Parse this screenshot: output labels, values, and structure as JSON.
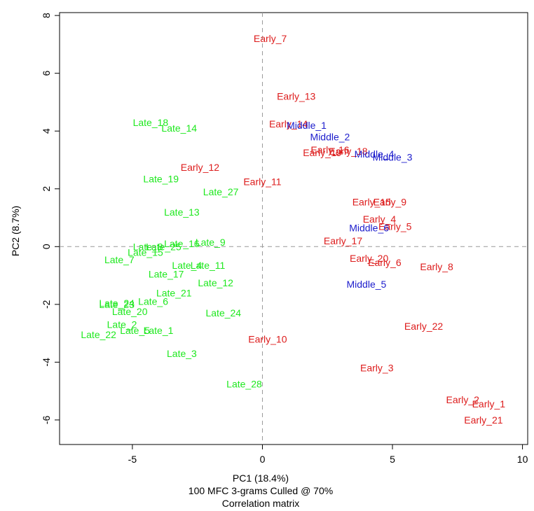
{
  "chart_data": {
    "type": "scatter",
    "title": "",
    "xlabel": "PC1 (18.4%)",
    "ylabel": "PC2 (8.7%)",
    "caption_lines": [
      "100 MFC 3-grams Culled @ 70%",
      "Correlation matrix"
    ],
    "xlim": [
      -7.8,
      10.2
    ],
    "ylim": [
      -6.85,
      8.1
    ],
    "x_ticks": [
      -5,
      0,
      5,
      10
    ],
    "y_ticks": [
      -6,
      -4,
      -2,
      0,
      2,
      4,
      6,
      8
    ],
    "reference_lines": {
      "x": 0,
      "y": 0
    },
    "grid": false,
    "series": [
      {
        "color": "#dd1c1c",
        "points": [
          {
            "label": "Early_7",
            "x": 0.3,
            "y": 7.2
          },
          {
            "label": "Early_13",
            "x": 1.3,
            "y": 5.2
          },
          {
            "label": "Early_14",
            "x": 1.0,
            "y": 4.25
          },
          {
            "label": "Early_16",
            "x": 2.6,
            "y": 3.35
          },
          {
            "label": "Early_18",
            "x": 3.3,
            "y": 3.3
          },
          {
            "label": "Early_19",
            "x": 2.3,
            "y": 3.25
          },
          {
            "label": "Early_12",
            "x": -2.4,
            "y": 2.75
          },
          {
            "label": "Early_11",
            "x": 0.0,
            "y": 2.25
          },
          {
            "label": "Early_15",
            "x": 4.2,
            "y": 1.55
          },
          {
            "label": "Early_9",
            "x": 4.9,
            "y": 1.55
          },
          {
            "label": "Early_4",
            "x": 4.5,
            "y": 0.95
          },
          {
            "label": "Early_5",
            "x": 5.1,
            "y": 0.7
          },
          {
            "label": "Early_17",
            "x": 3.1,
            "y": 0.2
          },
          {
            "label": "Early_20",
            "x": 4.1,
            "y": -0.4
          },
          {
            "label": "Early_6",
            "x": 4.7,
            "y": -0.55
          },
          {
            "label": "Early_8",
            "x": 6.7,
            "y": -0.7
          },
          {
            "label": "Early_22",
            "x": 6.2,
            "y": -2.75
          },
          {
            "label": "Early_10",
            "x": 0.2,
            "y": -3.2
          },
          {
            "label": "Early_3",
            "x": 4.4,
            "y": -4.2
          },
          {
            "label": "Early_2",
            "x": 7.7,
            "y": -5.3
          },
          {
            "label": "Early_1",
            "x": 8.7,
            "y": -5.45
          },
          {
            "label": "Early_21",
            "x": 8.5,
            "y": -6.0
          }
        ]
      },
      {
        "color": "#1c1ccc",
        "points": [
          {
            "label": "Middle_1",
            "x": 1.7,
            "y": 4.2
          },
          {
            "label": "Middle_2",
            "x": 2.6,
            "y": 3.8
          },
          {
            "label": "Middle_4",
            "x": 4.3,
            "y": 3.2
          },
          {
            "label": "Middle_3",
            "x": 5.0,
            "y": 3.1
          },
          {
            "label": "Middle_6",
            "x": 4.1,
            "y": 0.65
          },
          {
            "label": "Middle_5",
            "x": 4.0,
            "y": -1.3
          }
        ]
      },
      {
        "color": "#1ee81e",
        "points": [
          {
            "label": "Late_18",
            "x": -4.3,
            "y": 4.3
          },
          {
            "label": "Late_14",
            "x": -3.2,
            "y": 4.1
          },
          {
            "label": "Late_19",
            "x": -3.9,
            "y": 2.35
          },
          {
            "label": "Late_27",
            "x": -1.6,
            "y": 1.9
          },
          {
            "label": "Late_13",
            "x": -3.1,
            "y": 1.2
          },
          {
            "label": "Late_16",
            "x": -3.1,
            "y": 0.1
          },
          {
            "label": "Late_9",
            "x": -2.0,
            "y": 0.15
          },
          {
            "label": "Late_8",
            "x": -4.4,
            "y": 0.0
          },
          {
            "label": "Late_25",
            "x": -3.8,
            "y": 0.0
          },
          {
            "label": "Late_15",
            "x": -4.5,
            "y": -0.2
          },
          {
            "label": "Late_7",
            "x": -5.5,
            "y": -0.45
          },
          {
            "label": "Late_4",
            "x": -2.9,
            "y": -0.65
          },
          {
            "label": "Late_11",
            "x": -2.1,
            "y": -0.65
          },
          {
            "label": "Late_17",
            "x": -3.7,
            "y": -0.95
          },
          {
            "label": "Late_12",
            "x": -1.8,
            "y": -1.25
          },
          {
            "label": "Late_21",
            "x": -3.4,
            "y": -1.6
          },
          {
            "label": "Late_6",
            "x": -4.2,
            "y": -1.9
          },
          {
            "label": "Late_24",
            "x": -5.6,
            "y": -1.95
          },
          {
            "label": "Late_23",
            "x": -5.6,
            "y": -2.0
          },
          {
            "label": "Late_20",
            "x": -5.1,
            "y": -2.25
          },
          {
            "label": "Late_24",
            "x": -1.5,
            "y": -2.3
          },
          {
            "label": "Late_2",
            "x": -5.4,
            "y": -2.7
          },
          {
            "label": "Late_5",
            "x": -4.9,
            "y": -2.9
          },
          {
            "label": "Late_1",
            "x": -4.0,
            "y": -2.9
          },
          {
            "label": "Late_22",
            "x": -6.3,
            "y": -3.05
          },
          {
            "label": "Late_3",
            "x": -3.1,
            "y": -3.7
          },
          {
            "label": "Late_28",
            "x": -0.7,
            "y": -4.75
          }
        ]
      }
    ]
  }
}
